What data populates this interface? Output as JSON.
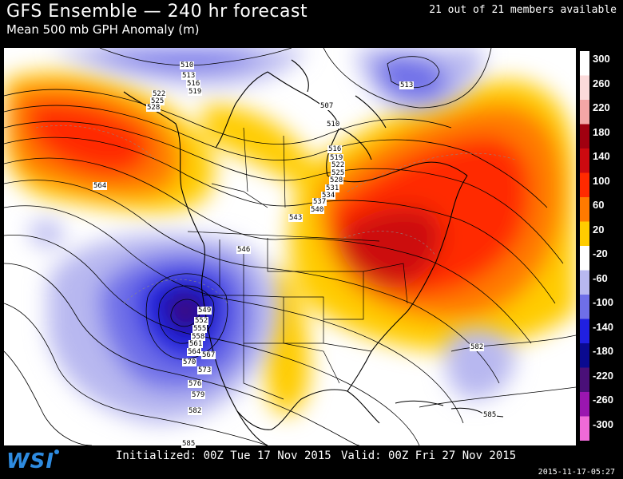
{
  "header": {
    "title": "GFS Ensemble — 240 hr forecast",
    "subtitle": "Mean 500 mb GPH Anomaly (m)",
    "members": "21 out of 21 members available"
  },
  "footer": {
    "logo": "WSI",
    "initialized": "Initialized: 00Z Tue 17 Nov 2015",
    "valid": "Valid: 00Z Fri 27 Nov 2015",
    "timestamp": "2015-11-17-05:27"
  },
  "colorbar": {
    "labels": [
      "300",
      "260",
      "220",
      "180",
      "140",
      "100",
      "60",
      "20",
      "-20",
      "-60",
      "-100",
      "-140",
      "-180",
      "-220",
      "-260",
      "-300"
    ],
    "colors": [
      "#ffffff",
      "#fbdada",
      "#f4a6a6",
      "#a00010",
      "#cc0a10",
      "#ff2a00",
      "#ff7a00",
      "#ffcc00",
      "#ffffff",
      "#b8b8f0",
      "#6f6fe8",
      "#2020e0",
      "#0a0a90",
      "#4a1078",
      "#9a16b0",
      "#f06ad8"
    ]
  },
  "contour_labels": [
    {
      "text": "510"
    },
    {
      "text": "513"
    },
    {
      "text": "516"
    },
    {
      "text": "519"
    },
    {
      "text": "522"
    },
    {
      "text": "525"
    },
    {
      "text": "528"
    },
    {
      "text": "513"
    },
    {
      "text": "507"
    },
    {
      "text": "510"
    },
    {
      "text": "516"
    },
    {
      "text": "519"
    },
    {
      "text": "522"
    },
    {
      "text": "525"
    },
    {
      "text": "528"
    },
    {
      "text": "531"
    },
    {
      "text": "534"
    },
    {
      "text": "537"
    },
    {
      "text": "540"
    },
    {
      "text": "543"
    },
    {
      "text": "546"
    },
    {
      "text": "549"
    },
    {
      "text": "552"
    },
    {
      "text": "555"
    },
    {
      "text": "558"
    },
    {
      "text": "561"
    },
    {
      "text": "564"
    },
    {
      "text": "567"
    },
    {
      "text": "570"
    },
    {
      "text": "573"
    },
    {
      "text": "576"
    },
    {
      "text": "579"
    },
    {
      "text": "582"
    },
    {
      "text": "564"
    },
    {
      "text": "582"
    },
    {
      "text": "585"
    },
    {
      "text": "585"
    }
  ]
}
